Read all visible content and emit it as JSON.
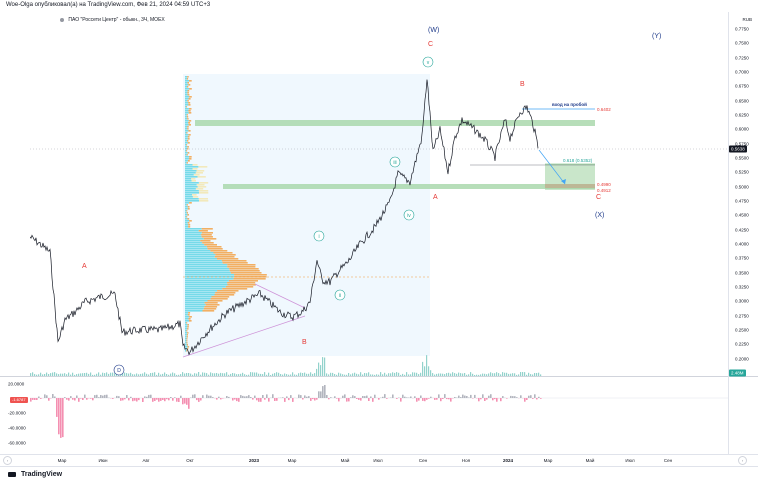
{
  "header": {
    "publisher_text": "Woe-Olga опубликовал(а) на TradingView.com, Фев 21, 2024 04:59 UTC+3"
  },
  "symbol": {
    "line": "ПАО \"Россети Центр\" - обыкн., 3Ч, MOEX"
  },
  "currency_label": "RUB",
  "price_axis": {
    "ticks": [
      "0.7750",
      "0.7500",
      "0.7250",
      "0.7000",
      "0.6750",
      "0.6500",
      "0.6250",
      "0.6000",
      "0.5750",
      "0.5500",
      "0.5250",
      "0.5000",
      "0.4750",
      "0.4500",
      "0.4250",
      "0.4000",
      "0.3750",
      "0.3500",
      "0.3250",
      "0.3000",
      "0.2750",
      "0.2500",
      "0.2250",
      "0.2000"
    ],
    "current_price": "0.5638",
    "bottom_badge": "2.48M"
  },
  "osc_axis": {
    "ticks": [
      "20.0000",
      "-20.0000",
      "-40.0000",
      "-60.0000"
    ],
    "current_value": "-1.6787"
  },
  "time_axis": {
    "ticks": [
      "Мар",
      "Июн",
      "Авг",
      "Окт",
      "2023",
      "Мар",
      "Май",
      "Июл",
      "Сен",
      "Ноя",
      "2024",
      "Мар",
      "Май",
      "Июл",
      "Сен"
    ],
    "bold_ticks": [
      "2023",
      "2024"
    ]
  },
  "wave_labels": {
    "W": "(W)",
    "X": "(X)",
    "Y": "(Y)",
    "C_top": "C",
    "B_top": "B",
    "A_mid": "A",
    "C_right": "C",
    "A_left": "A",
    "B_low": "B",
    "i": "i",
    "ii": "ii",
    "iii": "iii",
    "iv": "iv",
    "v": "v",
    "D": "D"
  },
  "annotations": {
    "entry_label": "вход на пробой",
    "entry_price": "0.6402",
    "fib_label": "0.618 (0.5352)",
    "target_1": "0.4990",
    "target_2": "0.4912"
  },
  "colors": {
    "up": "#26a69a",
    "down": "#ef5350",
    "zone_green": "#a5d6a7",
    "vp_blue": "#4dd0e1",
    "vp_orange": "#f39c3c",
    "wave_blue": "#1e3a8a",
    "wave_red": "#e53935",
    "wave_teal": "#26a69a"
  },
  "footer": {
    "brand": "TradingView"
  }
}
